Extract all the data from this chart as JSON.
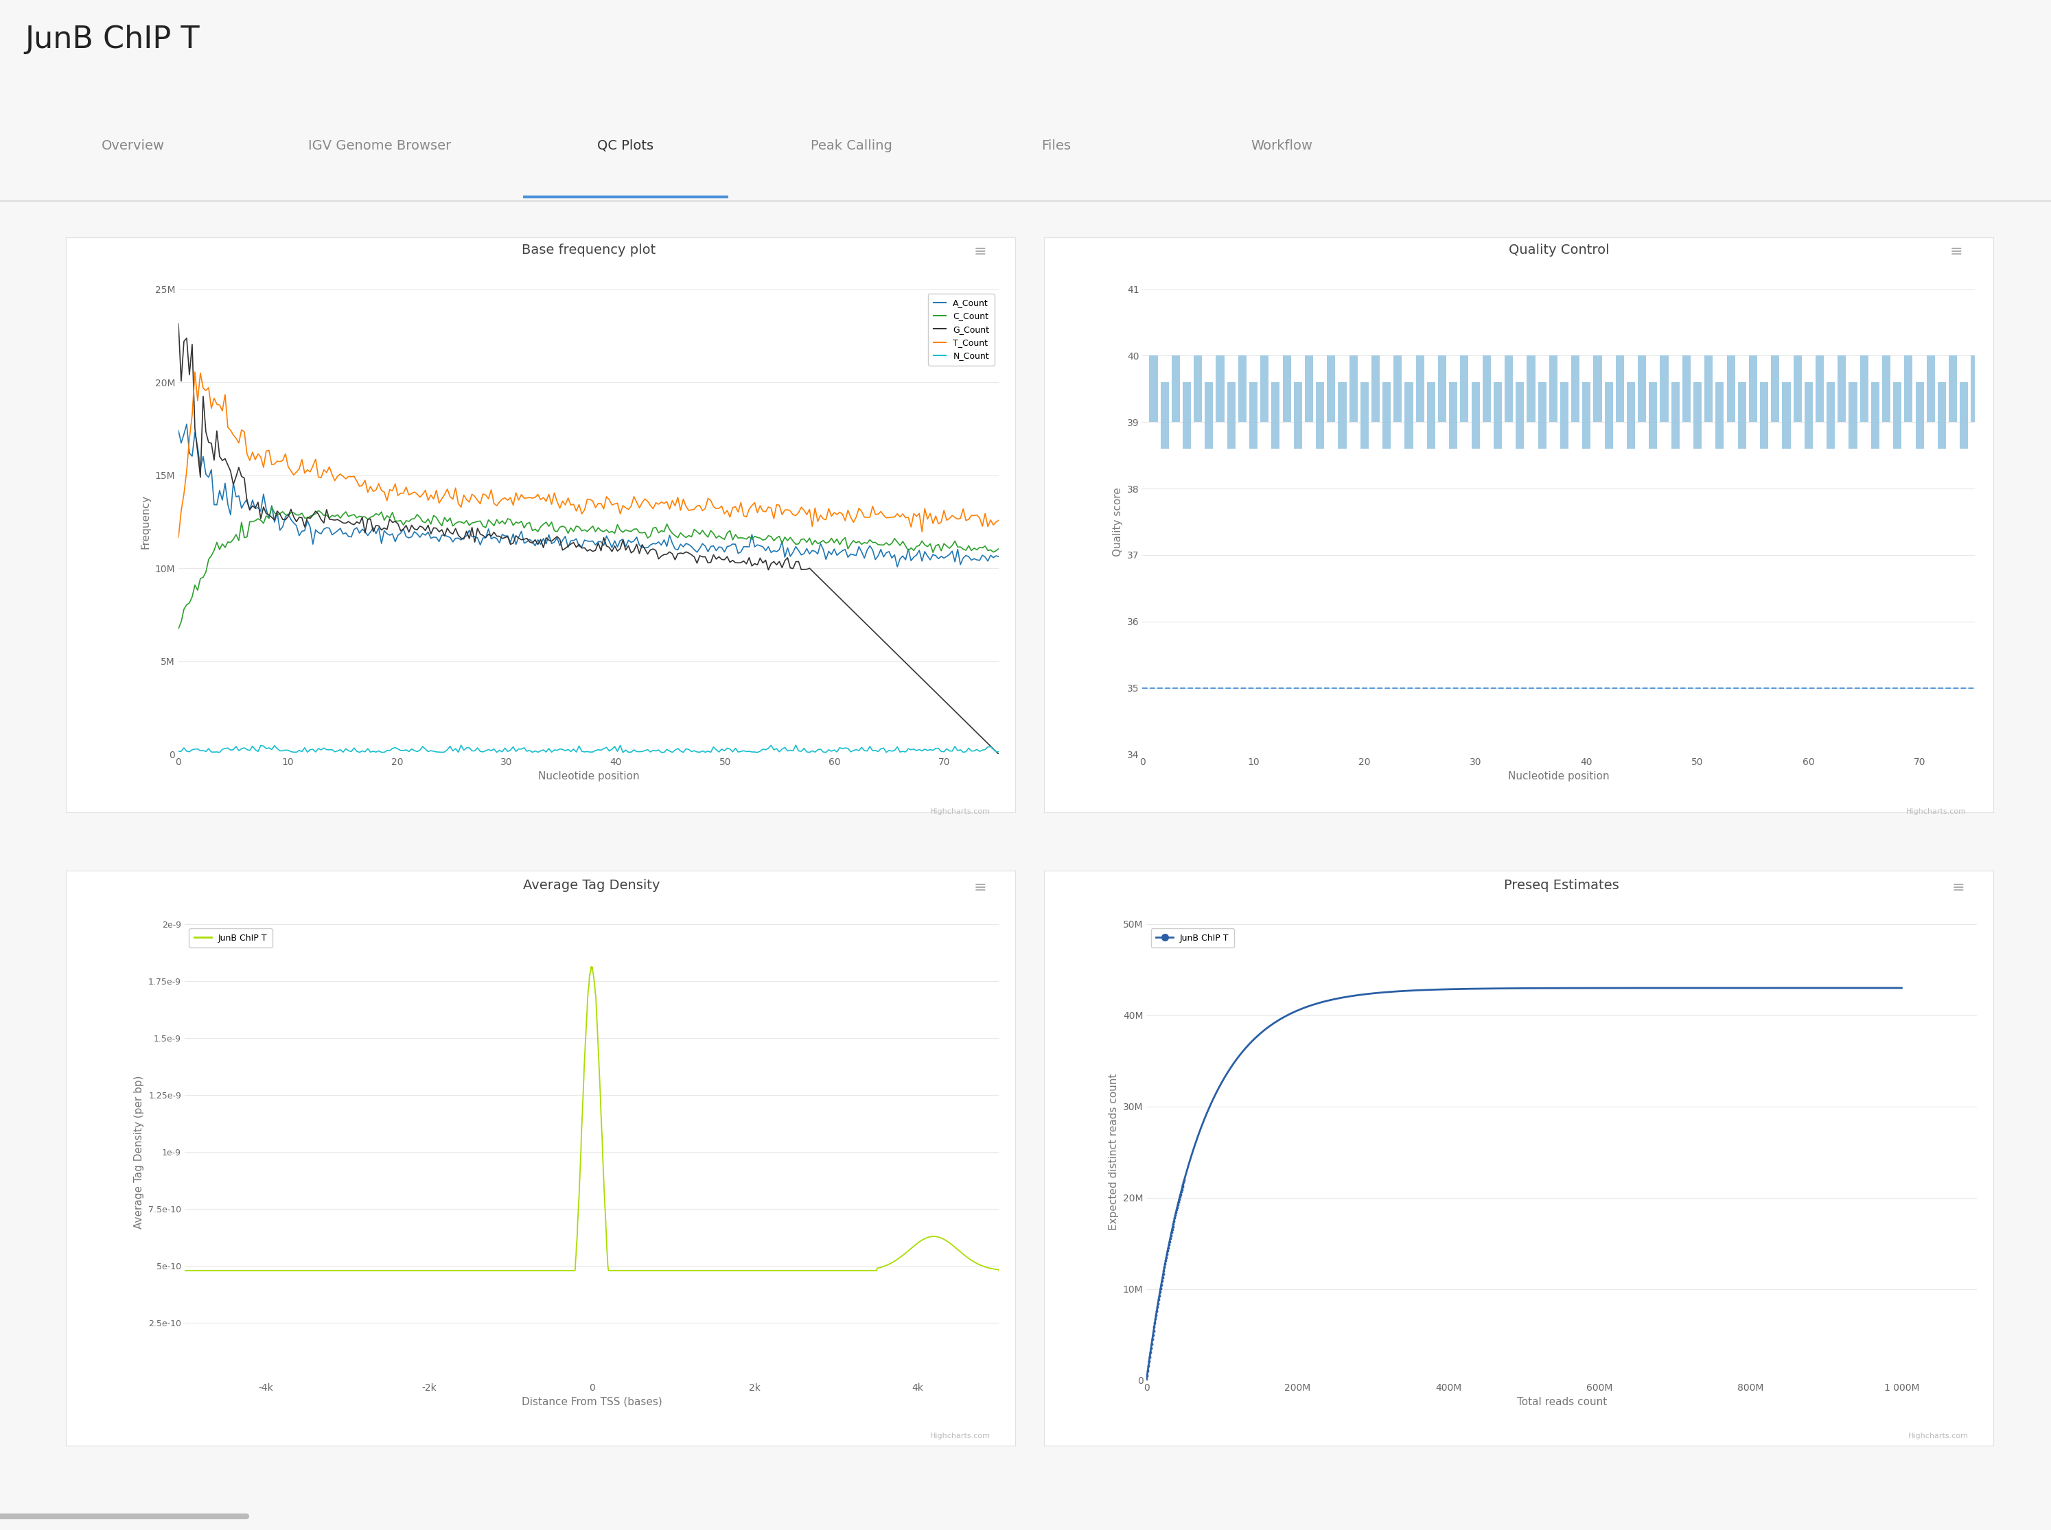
{
  "title": "JunB ChIP T",
  "nav_items": [
    "Overview",
    "IGV Genome Browser",
    "QC Plots",
    "Peak Calling",
    "Files",
    "Workflow"
  ],
  "active_nav": "QC Plots",
  "bg_color": "#f7f7f7",
  "panel_bg": "#ffffff",
  "plot1_title": "Base frequency plot",
  "plot1_xlabel": "Nucleotide position",
  "plot1_ylabel": "Frequency",
  "plot1_xlim": [
    0,
    75
  ],
  "plot1_xticks": [
    0,
    10,
    20,
    30,
    40,
    50,
    60,
    70
  ],
  "plot1_ylim": [
    0,
    25000000
  ],
  "plot1_yticks": [
    0,
    5000000,
    10000000,
    15000000,
    20000000,
    25000000
  ],
  "plot1_ytick_labels": [
    "0",
    "5M",
    "10M",
    "15M",
    "20M",
    "25M"
  ],
  "plot1_line_colors": {
    "A_Count": "#1f77b4",
    "C_Count": "#2ca02c",
    "G_Count": "#333333",
    "T_Count": "#ff7f00",
    "N_Count": "#17becf"
  },
  "highcharts_text": "Highcharts.com",
  "plot2_title": "Quality Control",
  "plot2_xlabel": "Nucleotide position",
  "plot2_ylabel": "Quality score",
  "plot2_xlim": [
    0,
    75
  ],
  "plot2_xticks": [
    0,
    10,
    20,
    30,
    40,
    50,
    60,
    70
  ],
  "plot2_ylim": [
    34,
    41
  ],
  "plot2_yticks": [
    34,
    35,
    36,
    37,
    38,
    39,
    40,
    41
  ],
  "plot2_bar_color": "#93c4e0",
  "plot2_line_color": "#4a90d9",
  "plot3_title": "Average Tag Density",
  "plot3_xlabel": "Distance From TSS (bases)",
  "plot3_ylabel": "Average Tag Density (per bp)",
  "plot3_xlim": [
    -5000,
    5000
  ],
  "plot3_xtick_labels": [
    "-4k",
    "-2k",
    "0",
    "2k",
    "4k"
  ],
  "plot3_xticks": [
    -4000,
    -2000,
    0,
    2000,
    4000
  ],
  "plot3_ylim": [
    0,
    2e-09
  ],
  "plot3_yticks": [
    2.5e-10,
    5e-10,
    7.5e-10,
    1e-09,
    1.25e-09,
    1.5e-09,
    1.75e-09,
    2e-09
  ],
  "plot3_ytick_labels": [
    "2.5e-10",
    "5e-10",
    "7.5e-10",
    "1e-9",
    "1.25e-9",
    "1.5e-9",
    "1.75e-9",
    "2e-9"
  ],
  "plot3_color": "#aadd00",
  "plot3_legend": "JunB ChIP T",
  "plot4_title": "Preseq Estimates",
  "plot4_xlabel": "Total reads count",
  "plot4_ylabel": "Expected distinct reads count",
  "plot4_xlim": [
    0,
    1100000000
  ],
  "plot4_xticks": [
    0,
    200000000,
    400000000,
    600000000,
    800000000,
    1000000000
  ],
  "plot4_xtick_labels": [
    "0",
    "200M",
    "400M",
    "600M",
    "800M",
    "1 000M"
  ],
  "plot4_ylim": [
    0,
    50000000
  ],
  "plot4_yticks": [
    0,
    10000000,
    20000000,
    30000000,
    40000000,
    50000000
  ],
  "plot4_ytick_labels": [
    "0",
    "10M",
    "20M",
    "30M",
    "40M",
    "50M"
  ],
  "plot4_color": "#2a5fa5",
  "plot4_legend": "JunB ChIP T"
}
